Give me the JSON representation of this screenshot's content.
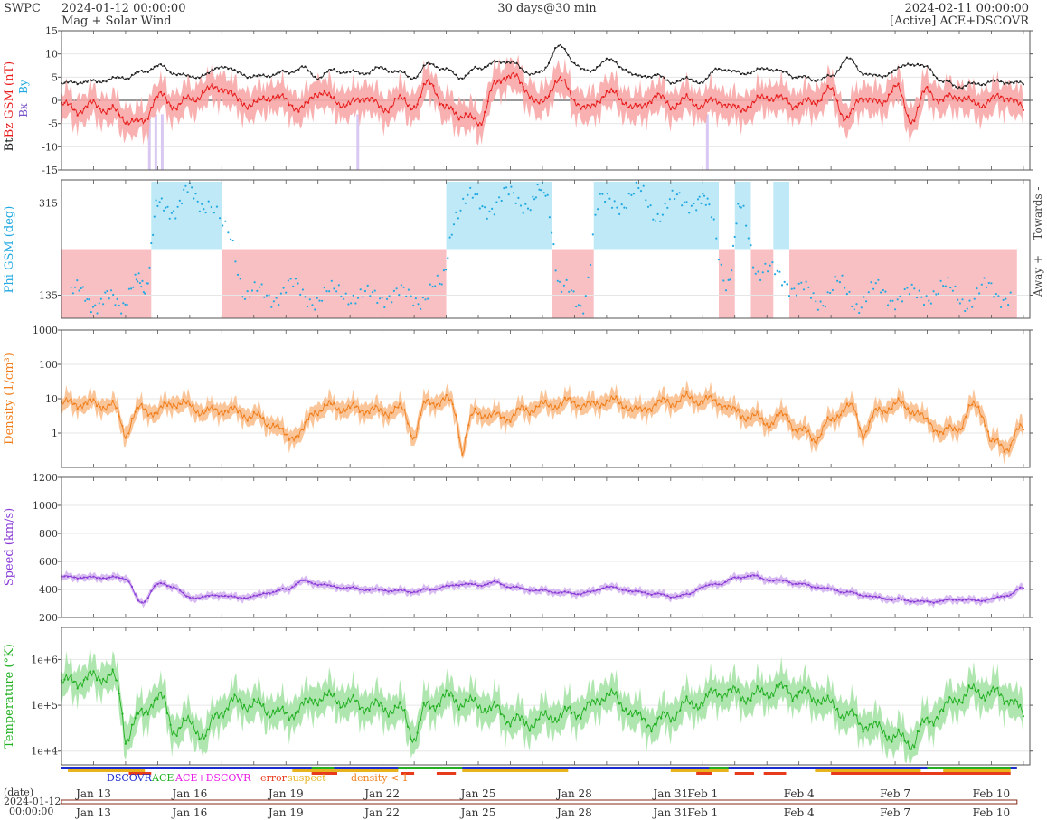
{
  "header": {
    "org": "SWPC",
    "start": "2024-01-12 00:00:00",
    "product": "Mag + Solar Wind",
    "span": "30 days@30 min",
    "end": "2024-02-11 00:00:00",
    "source": "[Active] ACE+DSCOVR"
  },
  "colors": {
    "bt": "#222222",
    "bz": "#e81c1c",
    "bz_band": "#f7a7a7",
    "bx": "#7a52c7",
    "by": "#23a9e1",
    "phi": "#23a9e1",
    "towards": "#bfe9f7",
    "away": "#f9c0c4",
    "density": "#f07f1d",
    "density_band": "#f9bf8e",
    "speed": "#8a3bd6",
    "speed_band": "#d3b4f0",
    "temperature": "#22b022",
    "temperature_band": "#a6e3a6",
    "dscovr": "#1a2ccd",
    "ace": "#22b022",
    "ace_dscovr": "#e81ce8",
    "error": "#e83b1c",
    "suspect": "#e8b31c",
    "density_lt1": "#f07f1d"
  },
  "chart_data": [
    {
      "type": "line",
      "panel": "mag",
      "ylabel_parts": [
        "Bt",
        "Bz GSM (nT)",
        "Bx",
        "By"
      ],
      "ylim": [
        -15,
        15
      ],
      "yticks": [
        "15",
        "10",
        "5",
        "0",
        "-5",
        "-10",
        "-15"
      ],
      "x_unit": "days since 2024-01-12",
      "series": [
        {
          "name": "Bt",
          "x": [
            0,
            0.5,
            1,
            1.5,
            2,
            2.5,
            3,
            3.5,
            4,
            4.5,
            5,
            5.5,
            6,
            6.5,
            7,
            7.5,
            8,
            8.5,
            9,
            9.5,
            10,
            10.5,
            11,
            11.5,
            12,
            12.5,
            13,
            13.5,
            14,
            14.5,
            15,
            15.5,
            16,
            16.5,
            17,
            17.5,
            18,
            18.5,
            19,
            19.5,
            20,
            20.5,
            21,
            21.5,
            22,
            22.5,
            23,
            23.5,
            24,
            24.5,
            25,
            25.5,
            26,
            26.5,
            27,
            27.5,
            28,
            28.5,
            29,
            29.5,
            30
          ],
          "values": [
            3.5,
            4,
            4,
            4.5,
            5,
            6,
            7.5,
            6,
            5,
            5.5,
            7.5,
            6,
            5,
            5.5,
            6,
            7,
            5,
            6.5,
            6,
            6,
            7,
            6,
            5,
            8,
            6.5,
            5,
            7,
            8,
            8.5,
            6,
            6,
            12,
            8,
            6,
            9,
            7,
            5,
            5.5,
            4,
            4.5,
            4,
            7,
            6,
            6,
            7,
            6,
            5,
            4.5,
            5,
            9,
            6,
            5,
            6.5,
            8,
            7,
            4,
            3,
            3.5,
            4,
            4,
            3.5
          ]
        },
        {
          "name": "Bz GSM",
          "x": [
            0,
            0.5,
            1,
            1.5,
            2,
            2.5,
            3,
            3.5,
            4,
            4.5,
            5,
            5.5,
            6,
            6.5,
            7,
            7.5,
            8,
            8.5,
            9,
            9.5,
            10,
            10.5,
            11,
            11.5,
            12,
            12.5,
            13,
            13.5,
            14,
            14.5,
            15,
            15.5,
            16,
            16.5,
            17,
            17.5,
            18,
            18.5,
            19,
            19.5,
            20,
            20.5,
            21,
            21.5,
            22,
            22.5,
            23,
            23.5,
            24,
            24.5,
            25,
            25.5,
            26,
            26.5,
            27,
            27.5,
            28,
            28.5,
            29,
            29.5,
            30
          ],
          "values": [
            -1,
            -2,
            -1,
            -2,
            -4,
            -5,
            1,
            -1,
            0,
            2,
            3,
            0,
            -1,
            1,
            0,
            -2,
            2,
            0,
            -1,
            1,
            -2,
            0,
            -1,
            4,
            -2,
            -3,
            -5,
            3,
            6,
            2,
            -1,
            5,
            0,
            -2,
            2,
            0,
            -2,
            1,
            -1,
            0,
            -1,
            0,
            -2,
            -1,
            1,
            0,
            -1,
            0,
            2,
            -4,
            1,
            -1,
            3,
            -4,
            2,
            0,
            1,
            -1,
            0,
            1,
            -2
          ]
        },
        {
          "name": "Bx",
          "x": [],
          "values": []
        },
        {
          "name": "By",
          "x": [],
          "values": []
        }
      ]
    },
    {
      "type": "scatter",
      "panel": "phi",
      "ylabel": "Phi GSM (deg)",
      "ylim": [
        90,
        360
      ],
      "yticks": [
        "315",
        "135"
      ],
      "right_labels": [
        "Towards -",
        "Away +"
      ],
      "x_unit": "days since 2024-01-12",
      "sectors": [
        {
          "sector": "away",
          "start": 0,
          "end": 2.8
        },
        {
          "sector": "towards",
          "start": 2.8,
          "end": 5.0
        },
        {
          "sector": "away",
          "start": 5.0,
          "end": 12.0
        },
        {
          "sector": "towards",
          "start": 12.0,
          "end": 15.3
        },
        {
          "sector": "away",
          "start": 15.3,
          "end": 16.6
        },
        {
          "sector": "towards",
          "start": 16.6,
          "end": 20.5
        },
        {
          "sector": "away",
          "start": 20.5,
          "end": 21.0
        },
        {
          "sector": "towards",
          "start": 21.0,
          "end": 21.5
        },
        {
          "sector": "away",
          "start": 21.5,
          "end": 22.2
        },
        {
          "sector": "towards",
          "start": 22.2,
          "end": 22.7
        },
        {
          "sector": "away",
          "start": 22.7,
          "end": 30.0
        }
      ],
      "series": [
        {
          "name": "Phi GSM",
          "x": [
            0.3,
            0.8,
            1.3,
            1.8,
            2.3,
            2.6,
            3.0,
            3.5,
            4.0,
            4.5,
            5.2,
            5.8,
            6.4,
            7.0,
            7.6,
            8.2,
            8.8,
            9.4,
            10.0,
            10.6,
            11.2,
            11.8,
            12.3,
            12.9,
            13.5,
            14.1,
            14.7,
            15.1,
            15.6,
            16.2,
            16.8,
            17.4,
            18.0,
            18.6,
            19.2,
            19.8,
            20.2,
            20.8,
            21.2,
            21.8,
            22.4,
            23.0,
            23.6,
            24.2,
            24.8,
            25.4,
            26.0,
            26.6,
            27.2,
            27.8,
            28.4,
            29.0,
            29.6
          ],
          "values": [
            140,
            130,
            120,
            125,
            150,
            160,
            300,
            310,
            330,
            320,
            250,
            140,
            130,
            150,
            135,
            130,
            145,
            125,
            140,
            130,
            135,
            145,
            300,
            320,
            310,
            330,
            315,
            340,
            140,
            120,
            310,
            320,
            330,
            300,
            315,
            325,
            300,
            160,
            310,
            170,
            180,
            140,
            130,
            150,
            125,
            140,
            135,
            130,
            145,
            140,
            125,
            150,
            130
          ]
        }
      ]
    },
    {
      "type": "line",
      "panel": "density",
      "ylabel": "Density (1/cm³)",
      "yscale": "log",
      "ylim": [
        0.1,
        1000
      ],
      "yticks": [
        "1000",
        "100",
        "10",
        "1"
      ],
      "x_unit": "days since 2024-01-12",
      "series": [
        {
          "name": "Density",
          "x": [
            0,
            0.5,
            1,
            1.5,
            2,
            2.5,
            3,
            3.5,
            4,
            4.5,
            5,
            5.5,
            6,
            6.5,
            7,
            7.5,
            8,
            8.5,
            9,
            9.5,
            10,
            10.5,
            11,
            11.5,
            12,
            12.5,
            13,
            13.5,
            14,
            14.5,
            15,
            15.5,
            16,
            16.5,
            17,
            17.5,
            18,
            18.5,
            19,
            19.5,
            20,
            20.5,
            21,
            21.5,
            22,
            22.5,
            23,
            23.5,
            24,
            24.5,
            25,
            25.5,
            26,
            26.5,
            27,
            27.5,
            28,
            28.5,
            29,
            29.5,
            30
          ],
          "values": [
            7,
            7.5,
            7,
            6.5,
            1,
            5,
            4,
            8,
            6,
            4,
            5,
            4,
            3,
            2,
            0.8,
            1,
            5,
            6,
            5,
            5,
            4,
            5,
            0.8,
            8,
            9,
            0.3,
            4,
            3,
            3,
            5,
            6,
            7,
            8,
            6,
            9,
            7,
            4,
            7,
            8,
            10,
            9,
            8,
            4,
            3,
            2,
            3,
            1.2,
            0.7,
            2,
            6,
            1,
            4,
            7,
            5,
            2,
            1,
            1.5,
            6,
            0.5,
            0.4,
            1.3
          ]
        }
      ]
    },
    {
      "type": "line",
      "panel": "speed",
      "ylabel": "Speed (km/s)",
      "ylim": [
        200,
        1200
      ],
      "yticks": [
        "1200",
        "1000",
        "800",
        "600",
        "400",
        "200"
      ],
      "x_unit": "days since 2024-01-12",
      "series": [
        {
          "name": "Speed",
          "x": [
            0,
            0.5,
            1,
            1.5,
            2,
            2.5,
            3,
            3.5,
            4,
            4.5,
            5,
            5.5,
            6,
            6.5,
            7,
            7.5,
            8,
            8.5,
            9,
            9.5,
            10,
            10.5,
            11,
            11.5,
            12,
            12.5,
            13,
            13.5,
            14,
            14.5,
            15,
            15.5,
            16,
            16.5,
            17,
            17.5,
            18,
            18.5,
            19,
            19.5,
            20,
            20.5,
            21,
            21.5,
            22,
            22.5,
            23,
            23.5,
            24,
            24.5,
            25,
            25.5,
            26,
            26.5,
            27,
            27.5,
            28,
            28.5,
            29,
            29.5,
            30
          ],
          "values": [
            490,
            488,
            485,
            486,
            480,
            300,
            440,
            420,
            340,
            350,
            360,
            340,
            350,
            380,
            400,
            460,
            440,
            420,
            410,
            400,
            395,
            390,
            385,
            400,
            420,
            440,
            430,
            450,
            420,
            400,
            390,
            380,
            370,
            380,
            420,
            400,
            380,
            370,
            350,
            360,
            420,
            440,
            480,
            500,
            470,
            460,
            440,
            420,
            400,
            380,
            360,
            340,
            330,
            320,
            310,
            320,
            330,
            320,
            330,
            360,
            410
          ]
        }
      ]
    },
    {
      "type": "line",
      "panel": "temperature",
      "ylabel": "Temperature (°K)",
      "yscale": "log",
      "ylim": [
        5000,
        5000000
      ],
      "yticks": [
        "1e+6",
        "1e+5",
        "1e+4"
      ],
      "x_unit": "days since 2024-01-12",
      "series": [
        {
          "name": "Temperature",
          "x": [
            0,
            0.5,
            1,
            1.5,
            2,
            2.5,
            3,
            3.5,
            4,
            4.5,
            5,
            5.5,
            6,
            6.5,
            7,
            7.5,
            8,
            8.5,
            9,
            9.5,
            10,
            10.5,
            11,
            11.5,
            12,
            12.5,
            13,
            13.5,
            14,
            14.5,
            15,
            15.5,
            16,
            16.5,
            17,
            17.5,
            18,
            18.5,
            19,
            19.5,
            20,
            20.5,
            21,
            21.5,
            22,
            22.5,
            23,
            23.5,
            24,
            24.5,
            25,
            25.5,
            26,
            26.5,
            27,
            27.5,
            28,
            28.5,
            29,
            29.5,
            30
          ],
          "values": [
            300000,
            350000,
            400000,
            450000,
            20000,
            60000,
            150000,
            30000,
            40000,
            20000,
            80000,
            120000,
            100000,
            80000,
            60000,
            90000,
            150000,
            140000,
            110000,
            100000,
            90000,
            80000,
            20000,
            100000,
            150000,
            120000,
            100000,
            80000,
            50000,
            40000,
            50000,
            60000,
            70000,
            90000,
            180000,
            100000,
            50000,
            40000,
            60000,
            100000,
            120000,
            200000,
            180000,
            150000,
            200000,
            220000,
            180000,
            150000,
            100000,
            60000,
            40000,
            30000,
            20000,
            15000,
            40000,
            80000,
            150000,
            200000,
            180000,
            150000,
            60000
          ]
        }
      ]
    }
  ],
  "status_bar": {
    "legend": [
      {
        "label": "DSCOVR",
        "key": "dscovr"
      },
      {
        "label": "ACE",
        "key": "ace"
      },
      {
        "label": "ACE+DSCOVR",
        "key": "ace_dscovr"
      },
      {
        "label": "error",
        "key": "error"
      },
      {
        "label": "suspect",
        "key": "suspect"
      },
      {
        "label": "density < 1",
        "key": "density_lt1"
      }
    ]
  },
  "x_axis": {
    "date_label": "(date)",
    "start_date": "2024-01-12",
    "start_time": "00:00:00",
    "ticks": [
      {
        "day": 1,
        "label": "Jan 13"
      },
      {
        "day": 4,
        "label": "Jan 16"
      },
      {
        "day": 7,
        "label": "Jan 19"
      },
      {
        "day": 10,
        "label": "Jan 22"
      },
      {
        "day": 13,
        "label": "Jan 25"
      },
      {
        "day": 16,
        "label": "Jan 28"
      },
      {
        "day": 19,
        "label": "Jan 31"
      },
      {
        "day": 20,
        "label": "Feb 1"
      },
      {
        "day": 23,
        "label": "Feb 4"
      },
      {
        "day": 26,
        "label": "Feb 7"
      },
      {
        "day": 29,
        "label": "Feb 10"
      }
    ]
  }
}
